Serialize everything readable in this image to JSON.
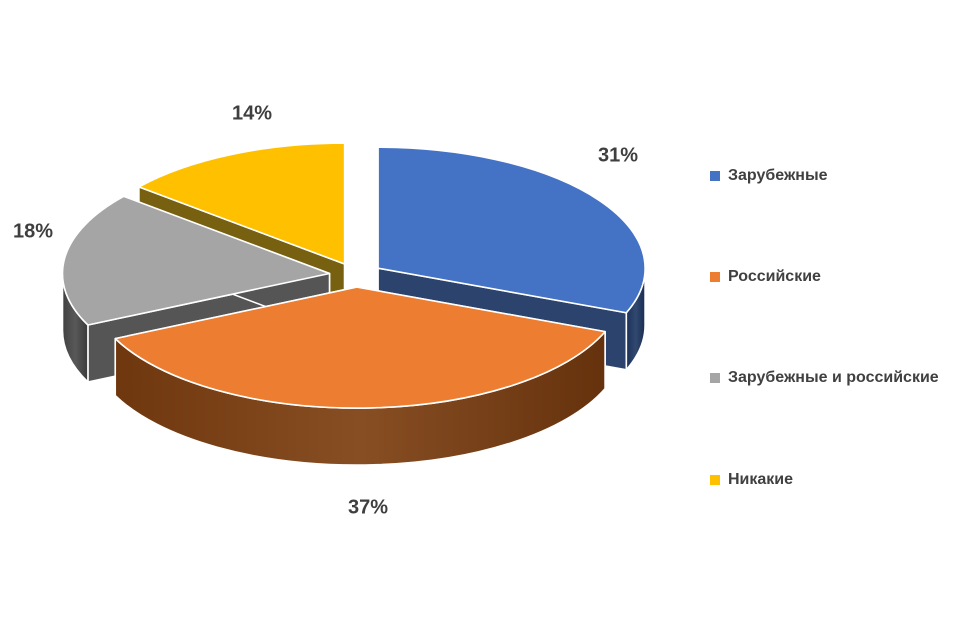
{
  "chart_data": {
    "type": "pie",
    "variant": "3d-exploded",
    "direction": "clockwise",
    "start_angle_deg": 0,
    "explode_fraction": 0.1,
    "legend_position": "right",
    "background": "#FFFFFF",
    "label_color": "#3F3F3F",
    "slices": [
      {
        "label": "Зарубежные",
        "value": 31,
        "pct_label": "31%",
        "color": "#4472C4",
        "side_color": "#1F3864"
      },
      {
        "label": "Российские",
        "value": 37,
        "pct_label": "37%",
        "color": "#ED7D31",
        "side_color": "#7E3F10"
      },
      {
        "label": "Зарубежные и российские",
        "value": 18,
        "pct_label": "18%",
        "color": "#A5A5A5",
        "side_color": "#4A4A4A"
      },
      {
        "label": "Никакие",
        "value": 14,
        "pct_label": "14%",
        "color": "#FFC000",
        "side_color": "#6E5600"
      }
    ]
  }
}
